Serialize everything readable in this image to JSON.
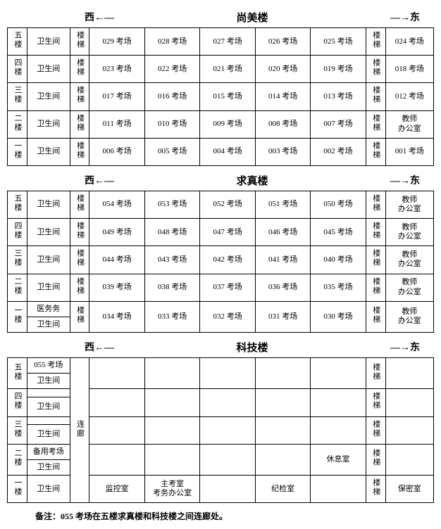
{
  "headers": {
    "west": "西←—",
    "east": "—→东",
    "b1": "尚美楼",
    "b2": "求真楼",
    "b3": "科技楼"
  },
  "labels": {
    "wc": "卫生间",
    "stair": "楼梯",
    "office": "教师\n办公室",
    "medical": "医务务",
    "corridor": "连廊",
    "spare": "备用考场",
    "monitor": "监控室",
    "chief": "主考室\n考务办公室",
    "discipline": "纪检室",
    "rest": "休息室",
    "secret": "保密室"
  },
  "floors": [
    "五楼",
    "四楼",
    "三楼",
    "二楼",
    "一楼"
  ],
  "b1": {
    "rows": [
      {
        "cells": [
          "029 考场",
          "028 考场",
          "027 考场",
          "026 考场",
          "025 考场"
        ],
        "last": "024 考场"
      },
      {
        "cells": [
          "023 考场",
          "022 考场",
          "021 考场",
          "020 考场",
          "019 考场"
        ],
        "last": "018 考场"
      },
      {
        "cells": [
          "017 考场",
          "016 考场",
          "015 考场",
          "014 考场",
          "013 考场"
        ],
        "last": "012 考场"
      },
      {
        "cells": [
          "011 考场",
          "010 考场",
          "009 考场",
          "008 考场",
          "007 考场"
        ],
        "last": "教师\n办公室"
      },
      {
        "cells": [
          "006 考场",
          "005 考场",
          "004 考场",
          "003 考场",
          "002 考场"
        ],
        "last": "001 考场"
      }
    ]
  },
  "b2": {
    "rows": [
      {
        "cells": [
          "054 考场",
          "053 考场",
          "052 考场",
          "051 考场",
          "050 考场"
        ]
      },
      {
        "cells": [
          "049 考场",
          "048 考场",
          "047 考场",
          "046 考场",
          "045 考场"
        ]
      },
      {
        "cells": [
          "044 考场",
          "043 考场",
          "042 考场",
          "041 考场",
          "040 考场"
        ]
      },
      {
        "cells": [
          "039 考场",
          "038 考场",
          "037 考场",
          "036 考场",
          "035 考场"
        ]
      },
      {
        "cells": [
          "034 考场",
          "033 考场",
          "032 考场",
          "031 考场",
          "030 考场"
        ]
      }
    ]
  },
  "b3": {
    "r5a": "055 考场"
  },
  "note": "备注：055 考场在五楼求真楼和科技楼之间连廊处。"
}
